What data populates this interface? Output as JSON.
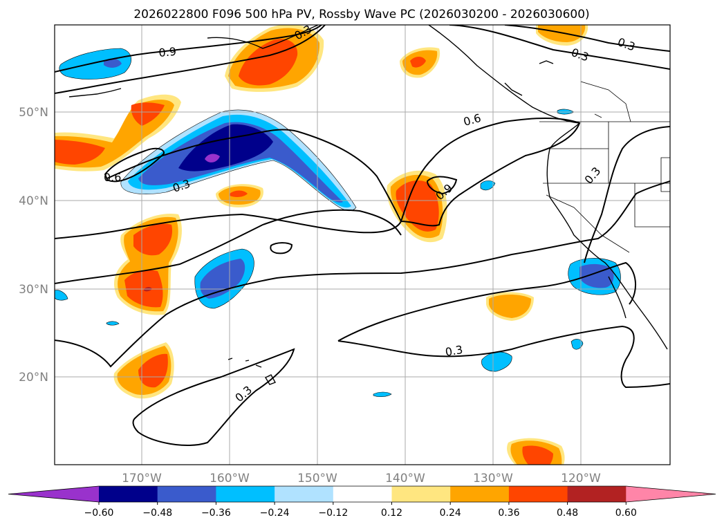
{
  "title": "2026022800 F096 500 hPa PV, Rossby Wave PC (2026030200 - 2026030600)",
  "lat_labels": [
    "50°N",
    "40°N",
    "30°N",
    "20°N"
  ],
  "lon_labels": [
    "170°W",
    "160°W",
    "150°W",
    "140°W",
    "130°W",
    "120°W"
  ],
  "colorbar": {
    "levels": [
      "−0.60",
      "−0.48",
      "−0.36",
      "−0.24",
      "−0.12",
      "0.12",
      "0.24",
      "0.36",
      "0.48",
      "0.60"
    ],
    "colors": [
      "#9932cc",
      "#00008b",
      "#3a5bcc",
      "#00bfff",
      "#b0e2ff",
      "#ffffff",
      "#ffe680",
      "#ffa500",
      "#ff4500",
      "#b22222",
      "#ff85a8"
    ]
  },
  "contour_labels": [
    "0.9",
    "0.6",
    "0.3",
    "0.6",
    "0.3",
    "0.9",
    "0.3",
    "0.3",
    "0.3",
    "0.3",
    "0.3"
  ],
  "fill_colors": {
    "light_blue": "#b0e2ff",
    "blue": "#00bfff",
    "med_blue": "#3a5bcc",
    "navy": "#00008b",
    "purple": "#9932cc",
    "yellow": "#ffe680",
    "orange": "#ffa500",
    "red": "#ff4500",
    "dark_red": "#b22222"
  }
}
